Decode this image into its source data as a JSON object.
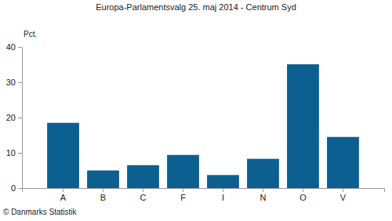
{
  "chart_data": {
    "type": "bar",
    "title": "Europa-Parlamentsvalg 25. maj 2014 - Centrum Syd",
    "y_label": "Pct.",
    "annotations": [
      "© Danmarks Statistik"
    ],
    "categories": [
      "A",
      "B",
      "C",
      "F",
      "I",
      "N",
      "O",
      "V"
    ],
    "values": [
      18.5,
      5.0,
      6.5,
      9.4,
      3.7,
      8.3,
      35.1,
      14.5
    ],
    "color": "#0b5f91",
    "ylim": [
      0,
      40
    ],
    "yticks": [
      0,
      10,
      20,
      30,
      40
    ],
    "grid": false
  }
}
